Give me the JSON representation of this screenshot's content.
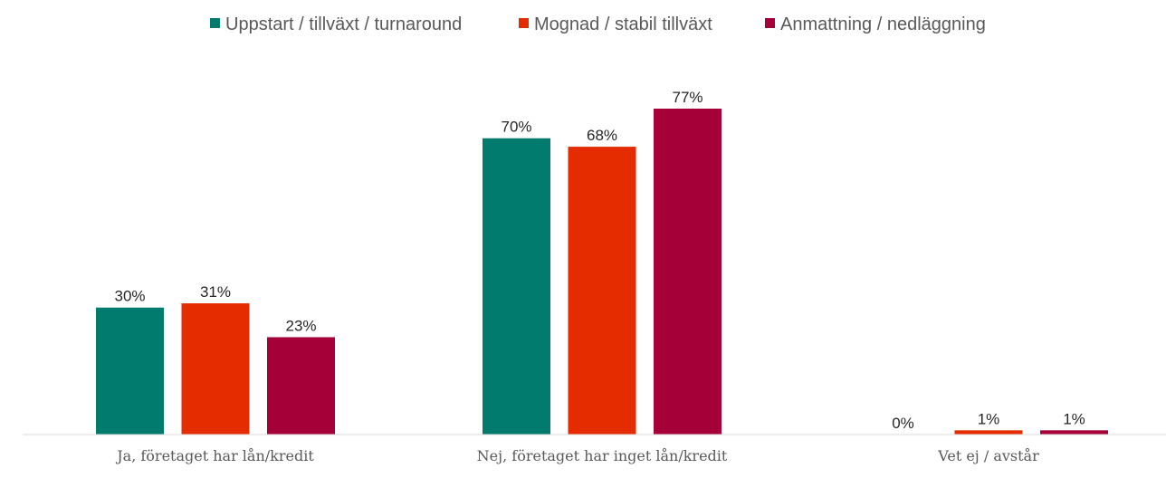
{
  "chart_data": {
    "type": "bar",
    "categories": [
      "Ja, företaget har lån/kredit",
      "Nej, företaget har inget lån/kredit",
      "Vet ej / avstår"
    ],
    "series": [
      {
        "name": "Uppstart / tillväxt / turnaround",
        "color": "#007B6E",
        "values": [
          30,
          70,
          0
        ]
      },
      {
        "name": "Mognad / stabil tillväxt",
        "color": "#E52B00",
        "values": [
          31,
          68,
          1
        ]
      },
      {
        "name": "Anmattning / nedläggning",
        "color": "#A50037",
        "values": [
          23,
          77,
          1
        ]
      }
    ],
    "value_suffix": "%",
    "ylim": [
      0,
      80
    ],
    "legend_position": "top-center",
    "grid": false
  }
}
